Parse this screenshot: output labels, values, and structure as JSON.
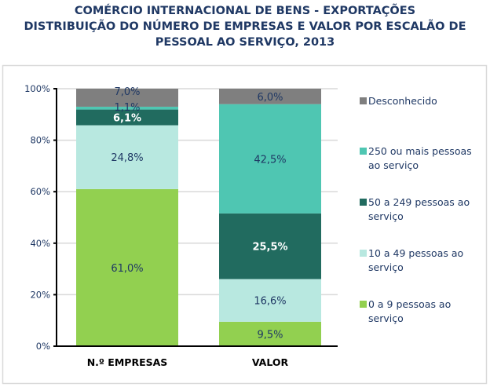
{
  "title_lines": [
    "COMÉRCIO INTERNACIONAL DE BENS - EXPORTAÇÕES",
    "DISTRIBUIÇÃO DO NÚMERO DE EMPRESAS E VALOR POR ESCALÃO DE",
    "PESSOAL AO SERVIÇO, 2013"
  ],
  "chart_data": {
    "type": "bar",
    "stacked": true,
    "percent_stacked": true,
    "title": "COMÉRCIO INTERNACIONAL DE BENS - EXPORTAÇÕES DISTRIBUIÇÃO DO NÚMERO DE EMPRESAS E VALOR POR ESCALÃO DE PESSOAL AO SERVIÇO, 2013",
    "categories": [
      "N.º EMPRESAS",
      "VALOR"
    ],
    "ylim": [
      0,
      100
    ],
    "yticks": [
      "0%",
      "20%",
      "40%",
      "60%",
      "80%",
      "100%"
    ],
    "grid": true,
    "legend_position": "right",
    "series": [
      {
        "name": "0 a 9 pessoas ao serviço",
        "values": [
          61.0,
          9.5
        ],
        "labels": [
          "61,0%",
          "9,5%"
        ],
        "color": "#92d050",
        "label_color": "#1f3864"
      },
      {
        "name": "10 a 49 pessoas ao serviço",
        "values": [
          24.8,
          16.6
        ],
        "labels": [
          "24,8%",
          "16,6%"
        ],
        "color": "#b8e8e0",
        "label_color": "#1f3864"
      },
      {
        "name": "50 a 249 pessoas ao serviço",
        "values": [
          6.1,
          25.5
        ],
        "labels": [
          "6,1%",
          "25,5%"
        ],
        "color": "#216b5f",
        "label_color": "#ffffff"
      },
      {
        "name": "250 ou mais pessoas ao serviço",
        "values": [
          1.1,
          42.5
        ],
        "labels": [
          "1,1%",
          "42,5%"
        ],
        "color": "#4fc6b2",
        "label_color": "#1f3864"
      },
      {
        "name": "Desconhecido",
        "values": [
          7.0,
          6.0
        ],
        "labels": [
          "7,0%",
          "6,0%"
        ],
        "color": "#7f7f7f",
        "label_color": "#1f3864"
      }
    ],
    "legend_lines": [
      [
        "Desconhecido"
      ],
      [
        "250 ou mais pessoas",
        "ao serviço"
      ],
      [
        "50 a 249 pessoas ao",
        "serviço"
      ],
      [
        "10 a 49 pessoas ao",
        "serviço"
      ],
      [
        "0 a 9 pessoas ao",
        "serviço"
      ]
    ]
  }
}
